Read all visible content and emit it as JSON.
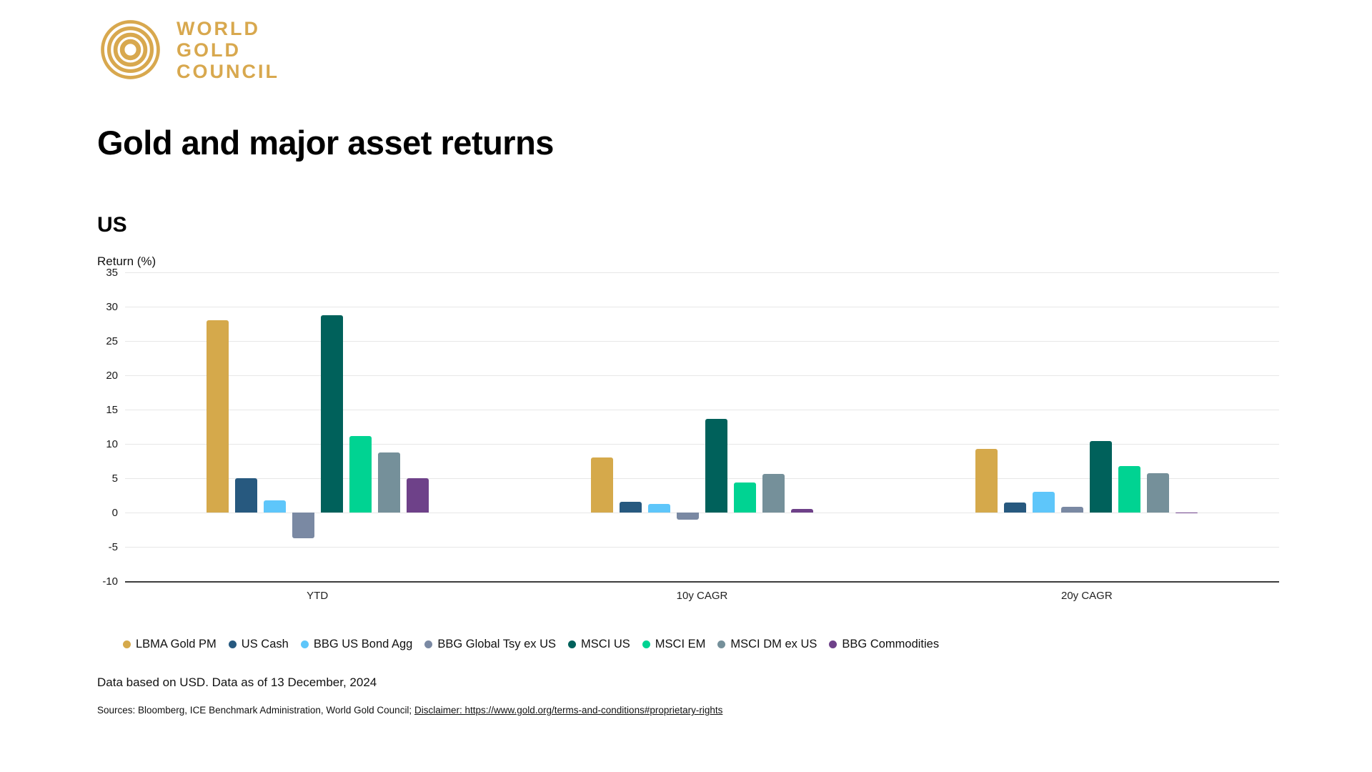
{
  "logo": {
    "line1": "WORLD",
    "line2": "GOLD",
    "line3": "COUNCIL",
    "color": "#D8A84E"
  },
  "page_title": "Gold and major asset returns",
  "chart_data": {
    "type": "bar",
    "title": "US",
    "ylabel": "Return (%)",
    "categories": [
      "YTD",
      "10y CAGR",
      "20y CAGR"
    ],
    "ylim": [
      -10,
      35
    ],
    "y_ticks": [
      35,
      30,
      25,
      20,
      15,
      10,
      5,
      0,
      -5,
      -10
    ],
    "grid": "horizontal-light, dark axis line at -10",
    "legend_position": "bottom",
    "series": [
      {
        "name": "LBMA Gold PM",
        "color": "#D5A94B",
        "values": [
          28.0,
          8.0,
          9.3
        ]
      },
      {
        "name": "US Cash",
        "color": "#27597F",
        "values": [
          5.0,
          1.6,
          1.5
        ]
      },
      {
        "name": "BBG US Bond Agg",
        "color": "#5EC6FA",
        "values": [
          1.8,
          1.3,
          3.0
        ]
      },
      {
        "name": "BBG Global Tsy ex US",
        "color": "#7A89A3",
        "values": [
          -3.7,
          -1.0,
          0.8
        ]
      },
      {
        "name": "MSCI US",
        "color": "#00615B",
        "values": [
          28.8,
          13.6,
          10.4
        ]
      },
      {
        "name": "MSCI EM",
        "color": "#00D392",
        "values": [
          11.1,
          4.4,
          6.8
        ]
      },
      {
        "name": "MSCI DM ex US",
        "color": "#75909A",
        "values": [
          8.7,
          5.6,
          5.7
        ]
      },
      {
        "name": "BBG Commodities",
        "color": "#6E4189",
        "values": [
          5.0,
          0.5,
          -0.1
        ]
      }
    ]
  },
  "footer": {
    "note": "Data based on USD. Data as of 13 December, 2024",
    "sources_prefix": "Sources: Bloomberg, ICE Benchmark Administration, World Gold Council; ",
    "disclaimer_link": "Disclaimer: https://www.gold.org/terms-and-conditions#proprietary-rights"
  }
}
